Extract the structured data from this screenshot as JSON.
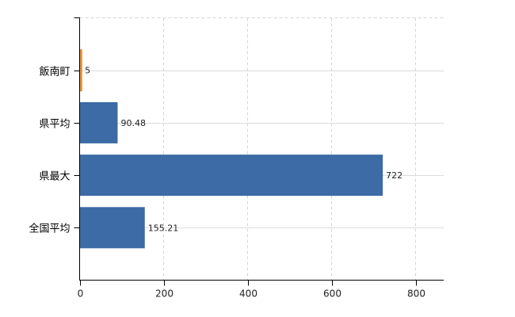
{
  "chart_data": {
    "type": "bar",
    "orientation": "horizontal",
    "title": "",
    "xlabel": "",
    "ylabel": "",
    "categories": [
      "飯南町",
      "県平均",
      "県最大",
      "全国平均"
    ],
    "values": [
      5,
      90.48,
      722,
      155.21
    ],
    "value_labels": [
      "5",
      "90.48",
      "722",
      "155.21"
    ],
    "series": [
      {
        "name": "value",
        "values": [
          5,
          90.48,
          722,
          155.21
        ]
      }
    ],
    "x_ticks": [
      0,
      200,
      400,
      600,
      800
    ],
    "x_tick_labels": [
      "0",
      "200",
      "400",
      "600",
      "800"
    ],
    "xlim": [
      0,
      868
    ],
    "grid": true,
    "legend": "none",
    "bar_colors": [
      "#ED9335",
      "#3C6BA5",
      "#3C6BA5",
      "#3C6BA5"
    ]
  },
  "colors": {
    "bar_blue": "#3C6BA5",
    "bar_orange": "#ED9335",
    "bar_orange_edge": "#DD7E1F",
    "axis": "#000000",
    "grid_dashed": "#D6D6D6",
    "grid_solid": "#DCDCDC",
    "tick_text": "#222222",
    "value_text": "#222222",
    "category_text": "#000000",
    "background": "#FFFFFF"
  }
}
